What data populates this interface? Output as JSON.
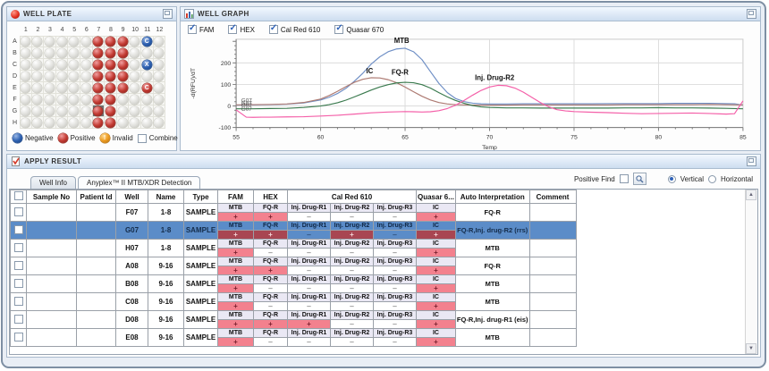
{
  "well_plate": {
    "title": "WELL PLATE",
    "columns": [
      "1",
      "2",
      "3",
      "4",
      "5",
      "6",
      "7",
      "8",
      "9",
      "10",
      "11",
      "12"
    ],
    "rows": [
      "A",
      "B",
      "C",
      "D",
      "E",
      "F",
      "G",
      "H"
    ],
    "wells": [
      {
        "id": "A7",
        "state": "positive"
      },
      {
        "id": "A8",
        "state": "positive"
      },
      {
        "id": "A9",
        "state": "positive"
      },
      {
        "id": "A11",
        "state": "negative",
        "label": "C"
      },
      {
        "id": "B7",
        "state": "positive"
      },
      {
        "id": "B8",
        "state": "positive"
      },
      {
        "id": "B9",
        "state": "positive"
      },
      {
        "id": "C7",
        "state": "positive"
      },
      {
        "id": "C8",
        "state": "positive"
      },
      {
        "id": "C9",
        "state": "positive"
      },
      {
        "id": "C11",
        "state": "negative",
        "label": "X"
      },
      {
        "id": "D7",
        "state": "positive"
      },
      {
        "id": "D8",
        "state": "positive"
      },
      {
        "id": "D9",
        "state": "positive"
      },
      {
        "id": "E7",
        "state": "positive"
      },
      {
        "id": "E8",
        "state": "positive"
      },
      {
        "id": "E9",
        "state": "positive"
      },
      {
        "id": "E11",
        "state": "positive",
        "label": "C"
      },
      {
        "id": "F7",
        "state": "positive"
      },
      {
        "id": "F8",
        "state": "positive"
      },
      {
        "id": "G7",
        "state": "positive"
      },
      {
        "id": "G8",
        "state": "positive"
      },
      {
        "id": "H7",
        "state": "positive"
      },
      {
        "id": "H8",
        "state": "positive"
      }
    ],
    "selected_well": "G7",
    "legend": [
      {
        "label": "Negative",
        "state": "negative"
      },
      {
        "label": "Positive",
        "state": "positive"
      },
      {
        "label": "Invalid",
        "state": "invalid",
        "mark": "!"
      }
    ],
    "combine_label": "Combine",
    "combine_checked": false
  },
  "well_graph": {
    "title": "WELL GRAPH",
    "channels": [
      {
        "label": "FAM",
        "checked": true
      },
      {
        "label": "HEX",
        "checked": true
      },
      {
        "label": "Cal Red 610",
        "checked": true
      },
      {
        "label": "Quasar 670",
        "checked": true
      }
    ],
    "chart_data": {
      "type": "line",
      "xlabel": "Temp",
      "ylabel": "-d(RFU)/dT",
      "xlim": [
        55,
        85
      ],
      "ylim": [
        -100,
        310
      ],
      "xticks": [
        55,
        60,
        65,
        70,
        75,
        80,
        85
      ],
      "yticks": [
        -100,
        0,
        100,
        200
      ],
      "xgrid": [
        60,
        65,
        70,
        75,
        80
      ],
      "ygrid": [
        0,
        100,
        200
      ],
      "grid": true,
      "legend_position": "none",
      "series": [
        {
          "name": "MTB",
          "channel": "FAM",
          "color": "#6f8fc5",
          "points": [
            [
              55,
              4
            ],
            [
              56,
              5
            ],
            [
              57,
              6
            ],
            [
              58,
              8
            ],
            [
              59,
              14
            ],
            [
              60,
              28
            ],
            [
              60.5,
              40
            ],
            [
              61,
              58
            ],
            [
              61.5,
              82
            ],
            [
              62,
              115
            ],
            [
              62.5,
              152
            ],
            [
              63,
              195
            ],
            [
              63.5,
              228
            ],
            [
              64,
              252
            ],
            [
              64.5,
              265
            ],
            [
              65,
              268
            ],
            [
              65.5,
              252
            ],
            [
              66,
              215
            ],
            [
              66.5,
              160
            ],
            [
              67,
              105
            ],
            [
              67.5,
              62
            ],
            [
              68,
              34
            ],
            [
              68.5,
              20
            ],
            [
              69,
              13
            ],
            [
              69.5,
              10
            ],
            [
              70,
              9
            ],
            [
              71,
              9
            ],
            [
              72,
              10
            ],
            [
              73,
              10
            ],
            [
              74,
              10
            ],
            [
              75,
              10
            ],
            [
              76,
              10
            ],
            [
              77,
              11
            ],
            [
              78,
              11
            ],
            [
              79,
              11
            ],
            [
              80,
              11
            ],
            [
              81,
              12
            ],
            [
              82,
              12
            ],
            [
              83,
              12
            ],
            [
              84,
              11
            ],
            [
              84.5,
              10
            ],
            [
              85,
              4
            ]
          ]
        },
        {
          "name": "IC",
          "channel": "Cal Red 610",
          "color": "#ad7a72",
          "points": [
            [
              55,
              5
            ],
            [
              56,
              6
            ],
            [
              57,
              7
            ],
            [
              58,
              9
            ],
            [
              59,
              16
            ],
            [
              60,
              32
            ],
            [
              60.5,
              48
            ],
            [
              61,
              68
            ],
            [
              61.5,
              90
            ],
            [
              62,
              110
            ],
            [
              62.5,
              124
            ],
            [
              63,
              131
            ],
            [
              63.5,
              130
            ],
            [
              64,
              122
            ],
            [
              64.5,
              108
            ],
            [
              65,
              88
            ],
            [
              65.5,
              66
            ],
            [
              66,
              45
            ],
            [
              66.5,
              28
            ],
            [
              67,
              16
            ],
            [
              67.5,
              9
            ],
            [
              68,
              6
            ],
            [
              69,
              4
            ],
            [
              70,
              4
            ],
            [
              71,
              4
            ],
            [
              72,
              5
            ],
            [
              73,
              5
            ],
            [
              74,
              5
            ],
            [
              75,
              5
            ],
            [
              76,
              5
            ],
            [
              77,
              5
            ],
            [
              78,
              6
            ],
            [
              79,
              6
            ],
            [
              80,
              6
            ],
            [
              81,
              6
            ],
            [
              82,
              6
            ],
            [
              83,
              7
            ],
            [
              84,
              6
            ],
            [
              85,
              5
            ]
          ]
        },
        {
          "name": "FQ-R",
          "channel": "HEX",
          "color": "#3a7a4e",
          "points": [
            [
              55,
              -13
            ],
            [
              56,
              -13
            ],
            [
              57,
              -12
            ],
            [
              58,
              -11
            ],
            [
              59,
              -7
            ],
            [
              60,
              0
            ],
            [
              60.5,
              6
            ],
            [
              61,
              15
            ],
            [
              61.5,
              27
            ],
            [
              62,
              42
            ],
            [
              62.5,
              58
            ],
            [
              63,
              74
            ],
            [
              63.5,
              88
            ],
            [
              64,
              99
            ],
            [
              64.5,
              107
            ],
            [
              65,
              110
            ],
            [
              65.5,
              108
            ],
            [
              66,
              99
            ],
            [
              66.5,
              83
            ],
            [
              67,
              62
            ],
            [
              67.5,
              42
            ],
            [
              68,
              25
            ],
            [
              68.5,
              12
            ],
            [
              69,
              2
            ],
            [
              69.5,
              -4
            ],
            [
              70,
              -7
            ],
            [
              71,
              -9
            ],
            [
              72,
              -9
            ],
            [
              73,
              -10
            ],
            [
              74,
              -10
            ],
            [
              75,
              -10
            ],
            [
              76,
              -10
            ],
            [
              77,
              -10
            ],
            [
              78,
              -9
            ],
            [
              79,
              -9
            ],
            [
              80,
              -8
            ],
            [
              81,
              -9
            ],
            [
              82,
              -9
            ],
            [
              83,
              -10
            ],
            [
              84,
              -11
            ],
            [
              85,
              -13
            ]
          ]
        },
        {
          "name": "Inj. Drug-R2",
          "channel": "Quasar 670",
          "color": "#f45fa8",
          "points": [
            [
              55,
              -18
            ],
            [
              55.3,
              -35
            ],
            [
              55.6,
              -52
            ],
            [
              56,
              -53
            ],
            [
              56.5,
              -52
            ],
            [
              57,
              -52
            ],
            [
              58,
              -51
            ],
            [
              59,
              -50
            ],
            [
              60,
              -47
            ],
            [
              61,
              -43
            ],
            [
              62,
              -38
            ],
            [
              63,
              -32
            ],
            [
              64,
              -28
            ],
            [
              65,
              -26
            ],
            [
              65.5,
              -27
            ],
            [
              66,
              -28
            ],
            [
              66.5,
              -27
            ],
            [
              67,
              -22
            ],
            [
              67.5,
              -12
            ],
            [
              68,
              4
            ],
            [
              68.5,
              26
            ],
            [
              69,
              50
            ],
            [
              69.5,
              72
            ],
            [
              70,
              88
            ],
            [
              70.5,
              96
            ],
            [
              71,
              94
            ],
            [
              71.5,
              83
            ],
            [
              72,
              64
            ],
            [
              72.5,
              40
            ],
            [
              73,
              16
            ],
            [
              73.5,
              -4
            ],
            [
              74,
              -17
            ],
            [
              74.5,
              -23
            ],
            [
              75,
              -26
            ],
            [
              76,
              -29
            ],
            [
              77,
              -31
            ],
            [
              78,
              -34
            ],
            [
              79,
              -36
            ],
            [
              80,
              -35
            ],
            [
              81,
              -34
            ],
            [
              82,
              -33
            ],
            [
              83,
              -35
            ],
            [
              84,
              -38
            ],
            [
              84.5,
              -36
            ],
            [
              85,
              24
            ]
          ]
        }
      ],
      "peak_labels": [
        {
          "text": "MTB",
          "x": 64.8,
          "y": 293
        },
        {
          "text": "IC",
          "x": 62.9,
          "y": 152
        },
        {
          "text": "FQ-R",
          "x": 64.7,
          "y": 146
        },
        {
          "text": "Inj. Drug-R2",
          "x": 70.3,
          "y": 120
        }
      ],
      "trace_labels": [
        {
          "text": "G07",
          "x": 55.3,
          "y": 16
        },
        {
          "text": "G07",
          "x": 55.3,
          "y": 5
        },
        {
          "text": "G07",
          "x": 55.3,
          "y": -6
        },
        {
          "text": "G07",
          "x": 55.3,
          "y": -22
        }
      ]
    }
  },
  "apply_result": {
    "title": "APPLY RESULT",
    "tabs": [
      "Well Info",
      "Anyplex™ II MTB/XDR Detection"
    ],
    "active_tab": 1,
    "positive_find_label": "Positive Find",
    "positive_find_checked": false,
    "orientation": {
      "options": [
        "Vertical",
        "Horizontal"
      ],
      "selected": "Vertical"
    },
    "table": {
      "static_headers": [
        "Sample No",
        "Patient Id",
        "Well",
        "Name",
        "Type"
      ],
      "dye_headers": [
        {
          "label": "FAM",
          "span": 1
        },
        {
          "label": "HEX",
          "span": 1
        },
        {
          "label": "Cal Red 610",
          "span": 3
        },
        {
          "label": "Quasar 6...",
          "span": 1
        }
      ],
      "tail_headers": [
        "Auto  Interpretation",
        "Comment"
      ],
      "targets": [
        "MTB",
        "FQ-R",
        "Inj. Drug-R1",
        "Inj. Drug-R2",
        "Inj. Drug-R3",
        "IC"
      ],
      "rows": [
        {
          "sample_no": "",
          "patient_id": "",
          "well": "F07",
          "name": "1-8",
          "type": "SAMPLE",
          "results": [
            "+",
            "+",
            "-",
            "-",
            "-",
            "+"
          ],
          "auto": "FQ-R",
          "comment": "",
          "selected": false,
          "checked": false
        },
        {
          "sample_no": "",
          "patient_id": "",
          "well": "G07",
          "name": "1-8",
          "type": "SAMPLE",
          "results": [
            "+",
            "+",
            "-",
            "+",
            "-",
            "+"
          ],
          "auto": "FQ-R,Inj. drug-R2 (rrs)",
          "comment": "",
          "selected": true,
          "checked": false
        },
        {
          "sample_no": "",
          "patient_id": "",
          "well": "H07",
          "name": "1-8",
          "type": "SAMPLE",
          "results": [
            "+",
            "-",
            "-",
            "-",
            "-",
            "+"
          ],
          "auto": "MTB",
          "comment": "",
          "selected": false,
          "checked": false
        },
        {
          "sample_no": "",
          "patient_id": "",
          "well": "A08",
          "name": "9-16",
          "type": "SAMPLE",
          "results": [
            "+",
            "+",
            "-",
            "-",
            "-",
            "+"
          ],
          "auto": "FQ-R",
          "comment": "",
          "selected": false,
          "checked": false
        },
        {
          "sample_no": "",
          "patient_id": "",
          "well": "B08",
          "name": "9-16",
          "type": "SAMPLE",
          "results": [
            "+",
            "-",
            "-",
            "-",
            "-",
            "+"
          ],
          "auto": "MTB",
          "comment": "",
          "selected": false,
          "checked": false
        },
        {
          "sample_no": "",
          "patient_id": "",
          "well": "C08",
          "name": "9-16",
          "type": "SAMPLE",
          "results": [
            "+",
            "-",
            "-",
            "-",
            "-",
            "+"
          ],
          "auto": "MTB",
          "comment": "",
          "selected": false,
          "checked": false
        },
        {
          "sample_no": "",
          "patient_id": "",
          "well": "D08",
          "name": "9-16",
          "type": "SAMPLE",
          "results": [
            "+",
            "+",
            "+",
            "-",
            "-",
            "+"
          ],
          "auto": "FQ-R,Inj. drug-R1 (eis)",
          "comment": "",
          "selected": false,
          "checked": false
        },
        {
          "sample_no": "",
          "patient_id": "",
          "well": "E08",
          "name": "9-16",
          "type": "SAMPLE",
          "results": [
            "+",
            "-",
            "-",
            "-",
            "-",
            "+"
          ],
          "auto": "MTB",
          "comment": "",
          "selected": false,
          "checked": false
        }
      ]
    }
  }
}
